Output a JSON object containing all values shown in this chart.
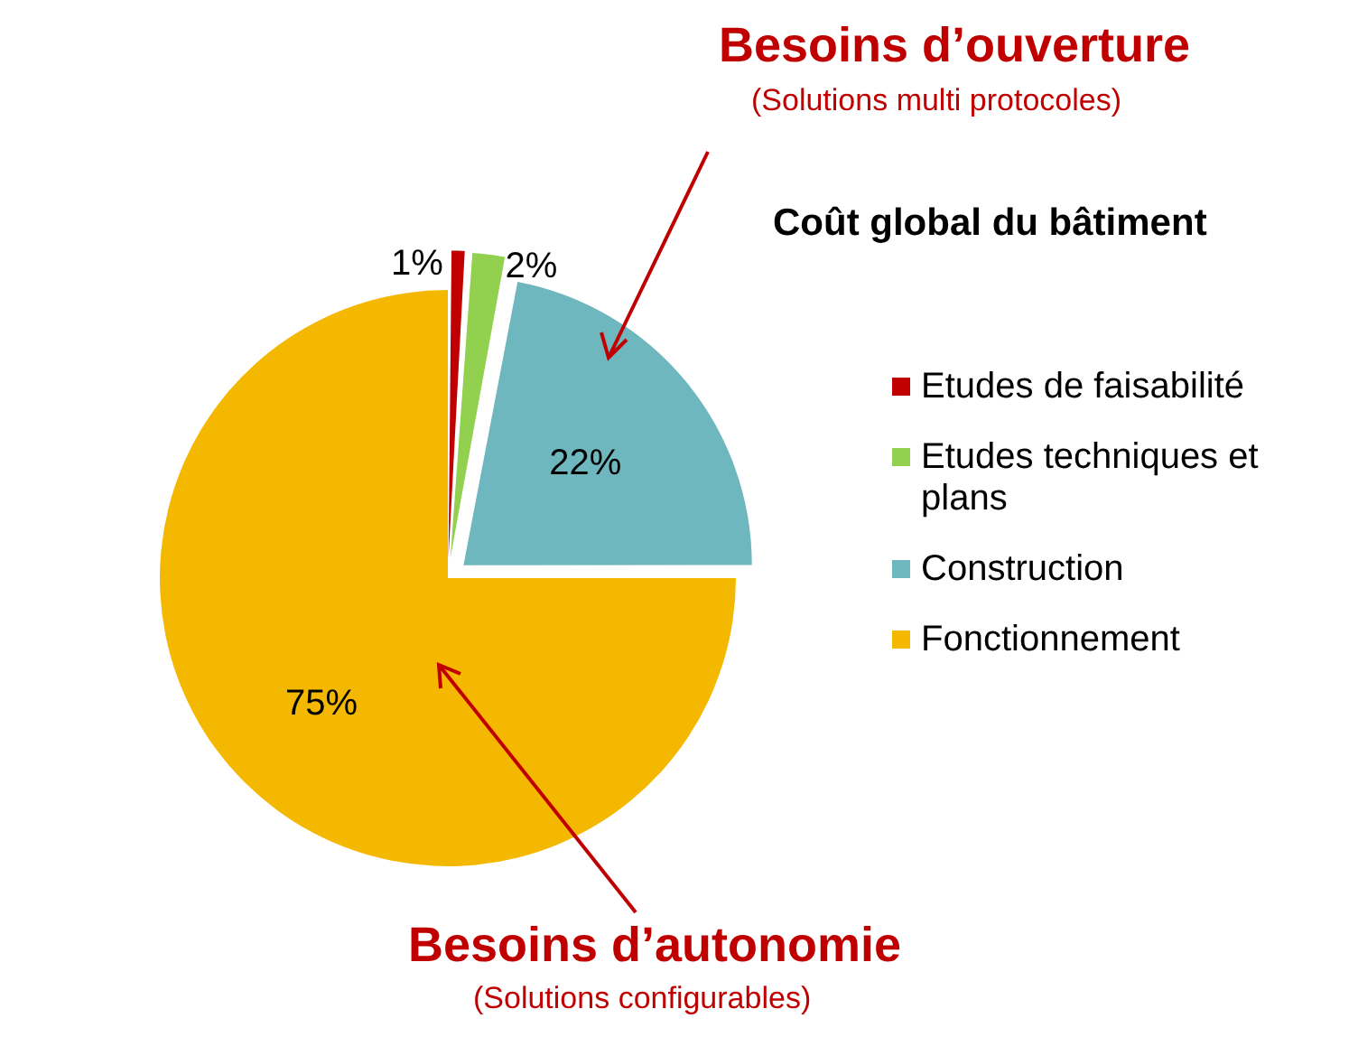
{
  "chart_data": {
    "type": "pie",
    "title": "Coût global du bâtiment",
    "categories": [
      "Etudes de faisabilité",
      "Etudes techniques et plans",
      "Construction",
      "Fonctionnement"
    ],
    "values": [
      1,
      2,
      22,
      75
    ],
    "colors": [
      "#c00000",
      "#92d050",
      "#6fb7bf",
      "#f5b800"
    ],
    "value_labels": [
      "1%",
      "2%",
      "22%",
      "75%"
    ],
    "legend": "right",
    "annotations": [
      "Besoins d’ouverture",
      "(Solutions multi protocoles)",
      "Besoins d’autonomie",
      "(Solutions configurables)"
    ]
  }
}
